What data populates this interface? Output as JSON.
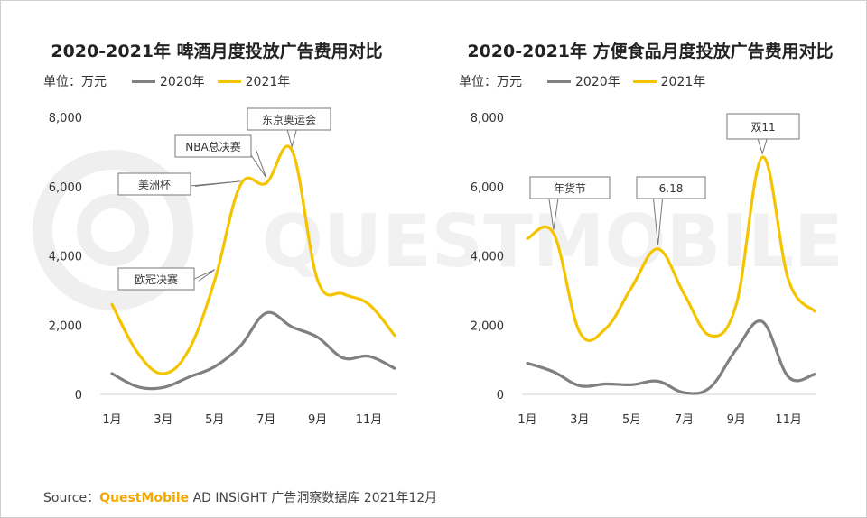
{
  "source": {
    "prefix": "Source：",
    "brand": "QuestMobile",
    "rest": " AD INSIGHT 广告洞察数据库 2021年12月"
  },
  "watermark": "QUESTMOBILE",
  "colors": {
    "y2020": "#808080",
    "y2021": "#f5c400",
    "axis": "#d9d9d9"
  },
  "chart_data": [
    {
      "type": "line",
      "title": "2020-2021年 啤酒月度投放广告费用对比",
      "unit_label": "单位：万元",
      "legend": [
        "2020年",
        "2021年"
      ],
      "ylim": [
        0,
        8000
      ],
      "yticks": [
        "0",
        "2,000",
        "4,000",
        "6,000",
        "8,000"
      ],
      "ytick_values": [
        0,
        2000,
        4000,
        6000,
        8000
      ],
      "x": [
        1,
        2,
        3,
        4,
        5,
        6,
        7,
        8,
        9,
        10,
        11,
        12
      ],
      "xtick_labels": [
        "1月",
        "3月",
        "5月",
        "7月",
        "9月",
        "11月"
      ],
      "xtick_values": [
        1,
        3,
        5,
        7,
        9,
        11
      ],
      "series": [
        {
          "name": "2020年",
          "values": [
            600,
            220,
            200,
            500,
            800,
            1400,
            2350,
            1950,
            1650,
            1050,
            1100,
            750
          ]
        },
        {
          "name": "2021年",
          "values": [
            2600,
            1200,
            600,
            1300,
            3300,
            6050,
            6100,
            7050,
            3300,
            2900,
            2600,
            1700
          ]
        }
      ],
      "annotations": [
        {
          "label": "东京奥运会",
          "x": 8,
          "y": 7050
        },
        {
          "label": "NBA总决赛",
          "x": 7,
          "y": 6150
        },
        {
          "label": "美洲杯",
          "x": 6,
          "y": 6050
        },
        {
          "label": "欧冠决赛",
          "x": 5,
          "y": 3500
        }
      ]
    },
    {
      "type": "line",
      "title": "2020-2021年 方便食品月度投放广告费用对比",
      "unit_label": "单位：万元",
      "legend": [
        "2020年",
        "2021年"
      ],
      "ylim": [
        0,
        8000
      ],
      "yticks": [
        "0",
        "2,000",
        "4,000",
        "6,000",
        "8,000"
      ],
      "ytick_values": [
        0,
        2000,
        4000,
        6000,
        8000
      ],
      "x": [
        1,
        2,
        3,
        4,
        5,
        6,
        7,
        8,
        9,
        10,
        11,
        12
      ],
      "xtick_labels": [
        "1月",
        "3月",
        "5月",
        "7月",
        "9月",
        "11月"
      ],
      "xtick_values": [
        1,
        3,
        5,
        7,
        9,
        11
      ],
      "series": [
        {
          "name": "2020年",
          "values": [
            900,
            650,
            250,
            300,
            280,
            380,
            50,
            200,
            1300,
            2100,
            500,
            580
          ]
        },
        {
          "name": "2021年",
          "values": [
            4500,
            4650,
            1800,
            1900,
            3100,
            4200,
            2900,
            1700,
            2600,
            6850,
            3300,
            2400
          ]
        }
      ],
      "annotations": [
        {
          "label": "年货节",
          "x": 2,
          "y": 4650
        },
        {
          "label": "6.18",
          "x": 6,
          "y": 4200
        },
        {
          "label": "双11",
          "x": 10,
          "y": 6850
        }
      ]
    }
  ]
}
